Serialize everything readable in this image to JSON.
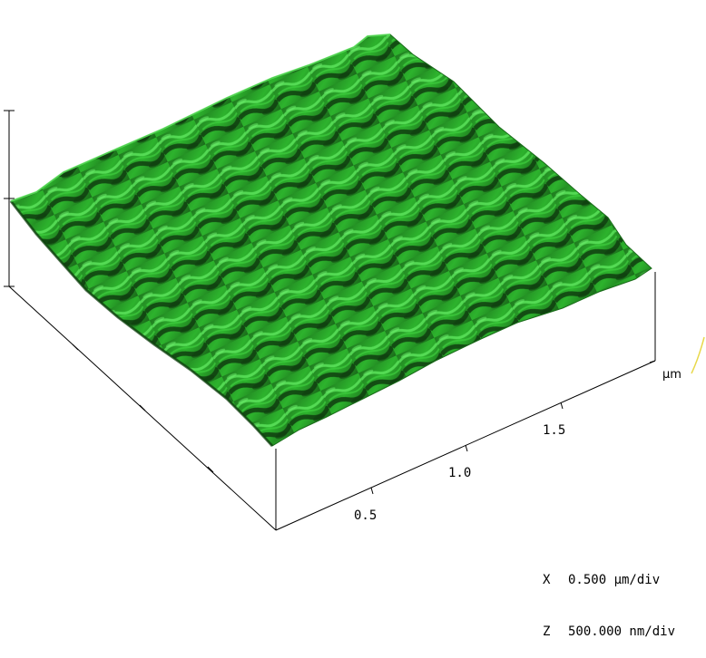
{
  "figure": {
    "x_ticks": [
      "0.5",
      "1.0",
      "1.5"
    ],
    "unit": "µm",
    "surface_color": "#2db32d",
    "surface_shadow_color": "#0f3d0f",
    "surface_highlight_color": "#5ee65e"
  },
  "scale": {
    "x_prefix": "X",
    "x_value": "0.500 µm/div",
    "z_prefix": "Z",
    "z_value": "500.000 nm/div"
  }
}
